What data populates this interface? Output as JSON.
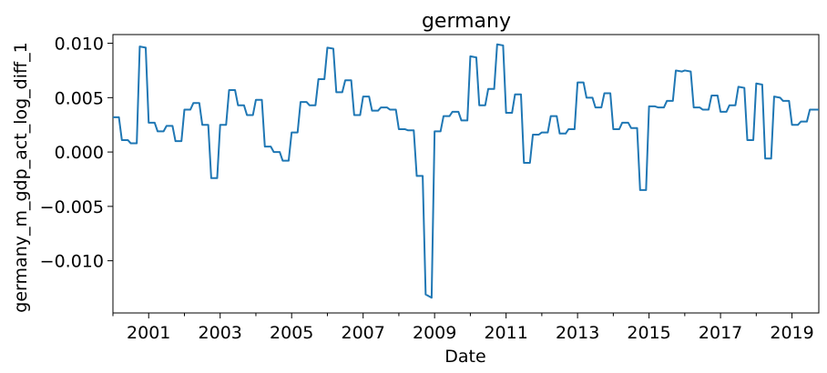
{
  "chart_data": {
    "type": "line",
    "title": "germany",
    "xlabel": "Date",
    "ylabel": "germany_m_gdp_act_log_diff_1",
    "xlim": [
      "2000-01",
      "2019-10"
    ],
    "ylim": [
      -0.0148,
      0.0108
    ],
    "grid": false,
    "legend": "none",
    "y_ticks": [
      -0.01,
      -0.005,
      0.0,
      0.005,
      0.01
    ],
    "y_tick_labels": [
      "−0.010",
      "−0.005",
      "0.000",
      "0.005",
      "0.010"
    ],
    "x_ticks": [
      "2001-01",
      "2003-01",
      "2005-01",
      "2007-01",
      "2009-01",
      "2011-01",
      "2013-01",
      "2015-01",
      "2017-01",
      "2019-01"
    ],
    "x_tick_labels": [
      "2001",
      "2003",
      "2005",
      "2007",
      "2009",
      "2011",
      "2013",
      "2015",
      "2017",
      "2019"
    ],
    "series": [
      {
        "color": "#1f77b4",
        "points": [
          [
            "2000-01",
            0.0032
          ],
          [
            "2000-03",
            0.0032
          ],
          [
            "2000-04",
            0.0011
          ],
          [
            "2000-06",
            0.0011
          ],
          [
            "2000-07",
            0.0008
          ],
          [
            "2000-09",
            0.0008
          ],
          [
            "2000-10",
            0.0097
          ],
          [
            "2000-12",
            0.0096
          ],
          [
            "2001-01",
            0.0027
          ],
          [
            "2001-03",
            0.0027
          ],
          [
            "2001-04",
            0.0019
          ],
          [
            "2001-06",
            0.0019
          ],
          [
            "2001-07",
            0.0024
          ],
          [
            "2001-09",
            0.0024
          ],
          [
            "2001-10",
            0.001
          ],
          [
            "2001-12",
            0.001
          ],
          [
            "2002-01",
            0.0039
          ],
          [
            "2002-03",
            0.0039
          ],
          [
            "2002-04",
            0.0045
          ],
          [
            "2002-06",
            0.0045
          ],
          [
            "2002-07",
            0.0025
          ],
          [
            "2002-09",
            0.0025
          ],
          [
            "2002-10",
            -0.0024
          ],
          [
            "2002-12",
            -0.0024
          ],
          [
            "2003-01",
            0.0025
          ],
          [
            "2003-03",
            0.0025
          ],
          [
            "2003-04",
            0.0057
          ],
          [
            "2003-06",
            0.0057
          ],
          [
            "2003-07",
            0.0043
          ],
          [
            "2003-09",
            0.0043
          ],
          [
            "2003-10",
            0.0034
          ],
          [
            "2003-12",
            0.0034
          ],
          [
            "2004-01",
            0.0048
          ],
          [
            "2004-03",
            0.0048
          ],
          [
            "2004-04",
            0.0005
          ],
          [
            "2004-06",
            0.0005
          ],
          [
            "2004-07",
            0.0
          ],
          [
            "2004-09",
            0.0
          ],
          [
            "2004-10",
            -0.0008
          ],
          [
            "2004-12",
            -0.0008
          ],
          [
            "2005-01",
            0.0018
          ],
          [
            "2005-03",
            0.0018
          ],
          [
            "2005-04",
            0.0046
          ],
          [
            "2005-06",
            0.0046
          ],
          [
            "2005-07",
            0.0043
          ],
          [
            "2005-09",
            0.0043
          ],
          [
            "2005-10",
            0.0067
          ],
          [
            "2005-12",
            0.0067
          ],
          [
            "2006-01",
            0.0096
          ],
          [
            "2006-03",
            0.0095
          ],
          [
            "2006-04",
            0.0055
          ],
          [
            "2006-06",
            0.0055
          ],
          [
            "2006-07",
            0.0066
          ],
          [
            "2006-09",
            0.0066
          ],
          [
            "2006-10",
            0.0034
          ],
          [
            "2006-12",
            0.0034
          ],
          [
            "2007-01",
            0.0051
          ],
          [
            "2007-03",
            0.0051
          ],
          [
            "2007-04",
            0.0038
          ],
          [
            "2007-06",
            0.0038
          ],
          [
            "2007-07",
            0.0041
          ],
          [
            "2007-09",
            0.0041
          ],
          [
            "2007-10",
            0.0039
          ],
          [
            "2007-12",
            0.0039
          ],
          [
            "2008-01",
            0.0021
          ],
          [
            "2008-03",
            0.0021
          ],
          [
            "2008-04",
            0.002
          ],
          [
            "2008-06",
            0.002
          ],
          [
            "2008-07",
            -0.0022
          ],
          [
            "2008-09",
            -0.0022
          ],
          [
            "2008-10",
            -0.0131
          ],
          [
            "2008-12",
            -0.0134
          ],
          [
            "2009-01",
            0.0019
          ],
          [
            "2009-03",
            0.0019
          ],
          [
            "2009-04",
            0.0033
          ],
          [
            "2009-06",
            0.0033
          ],
          [
            "2009-07",
            0.0037
          ],
          [
            "2009-09",
            0.0037
          ],
          [
            "2009-10",
            0.0029
          ],
          [
            "2009-12",
            0.0029
          ],
          [
            "2010-01",
            0.0088
          ],
          [
            "2010-03",
            0.0087
          ],
          [
            "2010-04",
            0.0043
          ],
          [
            "2010-06",
            0.0043
          ],
          [
            "2010-07",
            0.0058
          ],
          [
            "2010-09",
            0.0058
          ],
          [
            "2010-10",
            0.0099
          ],
          [
            "2010-12",
            0.0098
          ],
          [
            "2011-01",
            0.0036
          ],
          [
            "2011-03",
            0.0036
          ],
          [
            "2011-04",
            0.0053
          ],
          [
            "2011-06",
            0.0053
          ],
          [
            "2011-07",
            -0.001
          ],
          [
            "2011-09",
            -0.001
          ],
          [
            "2011-10",
            0.0016
          ],
          [
            "2011-12",
            0.0016
          ],
          [
            "2012-01",
            0.0018
          ],
          [
            "2012-03",
            0.0018
          ],
          [
            "2012-04",
            0.0033
          ],
          [
            "2012-06",
            0.0033
          ],
          [
            "2012-07",
            0.0017
          ],
          [
            "2012-09",
            0.0017
          ],
          [
            "2012-10",
            0.0021
          ],
          [
            "2012-12",
            0.0021
          ],
          [
            "2013-01",
            0.0064
          ],
          [
            "2013-03",
            0.0064
          ],
          [
            "2013-04",
            0.005
          ],
          [
            "2013-06",
            0.005
          ],
          [
            "2013-07",
            0.0041
          ],
          [
            "2013-09",
            0.0041
          ],
          [
            "2013-10",
            0.0054
          ],
          [
            "2013-12",
            0.0054
          ],
          [
            "2014-01",
            0.0021
          ],
          [
            "2014-03",
            0.0021
          ],
          [
            "2014-04",
            0.0027
          ],
          [
            "2014-06",
            0.0027
          ],
          [
            "2014-07",
            0.0022
          ],
          [
            "2014-09",
            0.0022
          ],
          [
            "2014-10",
            -0.0035
          ],
          [
            "2014-12",
            -0.0035
          ],
          [
            "2015-01",
            0.0042
          ],
          [
            "2015-03",
            0.0042
          ],
          [
            "2015-04",
            0.0041
          ],
          [
            "2015-06",
            0.0041
          ],
          [
            "2015-07",
            0.0047
          ],
          [
            "2015-09",
            0.0047
          ],
          [
            "2015-10",
            0.0075
          ],
          [
            "2015-12",
            0.0074
          ],
          [
            "2016-01",
            0.0075
          ],
          [
            "2016-03",
            0.0074
          ],
          [
            "2016-04",
            0.0041
          ],
          [
            "2016-06",
            0.0041
          ],
          [
            "2016-07",
            0.0039
          ],
          [
            "2016-09",
            0.0039
          ],
          [
            "2016-10",
            0.0052
          ],
          [
            "2016-12",
            0.0052
          ],
          [
            "2017-01",
            0.0037
          ],
          [
            "2017-03",
            0.0037
          ],
          [
            "2017-04",
            0.0043
          ],
          [
            "2017-06",
            0.0043
          ],
          [
            "2017-07",
            0.006
          ],
          [
            "2017-09",
            0.0059
          ],
          [
            "2017-10",
            0.0011
          ],
          [
            "2017-12",
            0.0011
          ],
          [
            "2018-01",
            0.0063
          ],
          [
            "2018-03",
            0.0062
          ],
          [
            "2018-04",
            -0.0006
          ],
          [
            "2018-06",
            -0.0006
          ],
          [
            "2018-07",
            0.0051
          ],
          [
            "2018-09",
            0.005
          ],
          [
            "2018-10",
            0.0047
          ],
          [
            "2018-12",
            0.0047
          ],
          [
            "2019-01",
            0.0025
          ],
          [
            "2019-03",
            0.0025
          ],
          [
            "2019-04",
            0.0028
          ],
          [
            "2019-06",
            0.0028
          ],
          [
            "2019-07",
            0.0039
          ],
          [
            "2019-10",
            0.0039
          ]
        ]
      }
    ]
  }
}
